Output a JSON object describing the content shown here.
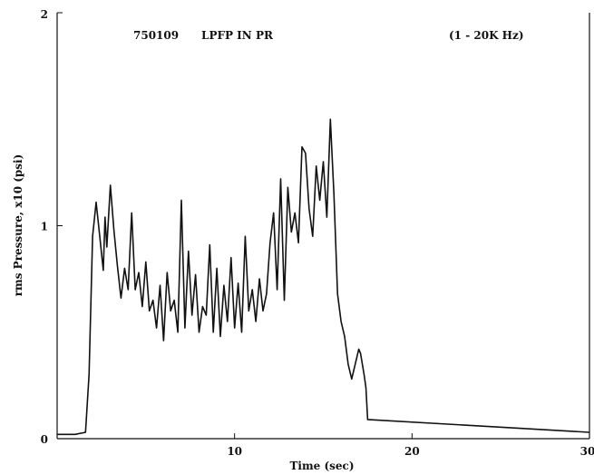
{
  "chart_data": {
    "type": "line",
    "annotations": {
      "record_id": "750109",
      "condition": "LPFP IN PR",
      "frequency_band": "(1 - 20K Hz)"
    },
    "xlabel": "Time (sec)",
    "ylabel": "rms Pressure, x10 (psi)",
    "xlim": [
      0,
      30
    ],
    "ylim": [
      0,
      2
    ],
    "x_ticks": [
      10,
      20,
      30
    ],
    "y_ticks": [
      0,
      1,
      2
    ],
    "grid": false,
    "line_color": "#111111",
    "series": [
      {
        "x": [
          0.0,
          1.0,
          1.6,
          1.8,
          2.0,
          2.2,
          2.4,
          2.6,
          2.7,
          2.8,
          3.0,
          3.2,
          3.4,
          3.6,
          3.8,
          4.0,
          4.2,
          4.4,
          4.6,
          4.8,
          5.0,
          5.2,
          5.4,
          5.6,
          5.8,
          6.0,
          6.2,
          6.4,
          6.6,
          6.8,
          7.0,
          7.2,
          7.4,
          7.6,
          7.8,
          8.0,
          8.2,
          8.4,
          8.6,
          8.8,
          9.0,
          9.2,
          9.4,
          9.6,
          9.8,
          10.0,
          10.2,
          10.4,
          10.6,
          10.8,
          11.0,
          11.2,
          11.4,
          11.6,
          11.8,
          12.0,
          12.2,
          12.4,
          12.6,
          12.8,
          13.0,
          13.2,
          13.4,
          13.6,
          13.8,
          14.0,
          14.2,
          14.4,
          14.6,
          14.8,
          15.0,
          15.2,
          15.4,
          15.6,
          15.8,
          16.0,
          16.2,
          16.4,
          16.6,
          16.8,
          17.0,
          17.1,
          17.3,
          17.4,
          17.5,
          30.0
        ],
        "y": [
          0.02,
          0.02,
          0.03,
          0.3,
          0.95,
          1.11,
          0.95,
          0.79,
          1.04,
          0.9,
          1.19,
          0.98,
          0.81,
          0.66,
          0.8,
          0.7,
          1.06,
          0.7,
          0.78,
          0.62,
          0.83,
          0.6,
          0.65,
          0.52,
          0.72,
          0.46,
          0.78,
          0.6,
          0.65,
          0.5,
          1.12,
          0.52,
          0.88,
          0.58,
          0.77,
          0.5,
          0.62,
          0.58,
          0.91,
          0.5,
          0.8,
          0.48,
          0.72,
          0.55,
          0.85,
          0.52,
          0.73,
          0.5,
          0.95,
          0.6,
          0.7,
          0.55,
          0.75,
          0.6,
          0.68,
          0.92,
          1.06,
          0.7,
          1.22,
          0.65,
          1.18,
          0.97,
          1.06,
          0.92,
          1.37,
          1.34,
          1.08,
          0.95,
          1.28,
          1.12,
          1.3,
          1.04,
          1.5,
          1.15,
          0.68,
          0.55,
          0.48,
          0.35,
          0.28,
          0.35,
          0.42,
          0.4,
          0.3,
          0.24,
          0.09,
          0.03
        ]
      }
    ]
  }
}
